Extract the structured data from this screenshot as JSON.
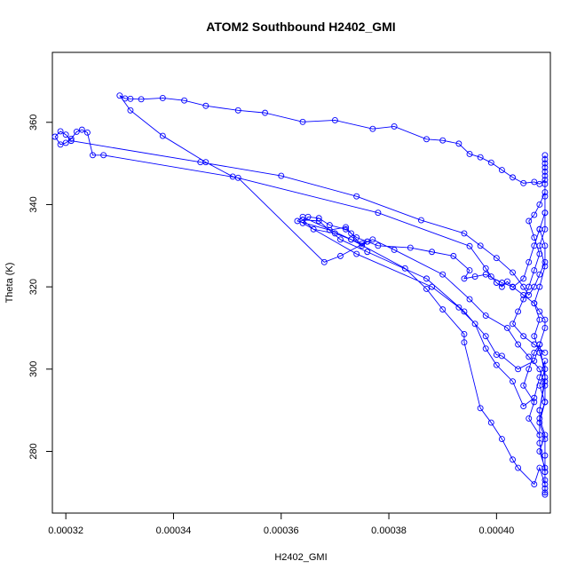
{
  "chart_data": {
    "type": "line",
    "marker": "open-circle",
    "title": "ATOM2 Southbound H2402_GMI",
    "xlabel": "H2402_GMI",
    "ylabel": "Theta (K)",
    "xlim": [
      0.0003175,
      0.00041
    ],
    "ylim": [
      265,
      377
    ],
    "x_ticks": [
      0.00032,
      0.00034,
      0.00036,
      0.00038,
      0.0004
    ],
    "x_tick_labels": [
      "0.00032",
      "0.00034",
      "0.00036",
      "0.00038",
      "0.00040"
    ],
    "y_ticks": [
      280,
      300,
      320,
      340,
      360
    ],
    "y_tick_labels": [
      "280",
      "300",
      "320",
      "340",
      "360"
    ],
    "color": "#0000ff",
    "series": [
      {
        "name": "H2402_GMI",
        "points": [
          [
            0.000409,
            352
          ],
          [
            0.000409,
            350
          ],
          [
            0.000409,
            348
          ],
          [
            0.000409,
            346
          ],
          [
            0.000408,
            345
          ],
          [
            0.000407,
            345.5
          ],
          [
            0.000405,
            345.2
          ],
          [
            0.000403,
            346.6
          ],
          [
            0.000401,
            348.4
          ],
          [
            0.000399,
            350.2
          ],
          [
            0.000397,
            351.5
          ],
          [
            0.000395,
            352.3
          ],
          [
            0.000393,
            354.8
          ],
          [
            0.00039,
            355.6
          ],
          [
            0.000387,
            355.9
          ],
          [
            0.000381,
            359.0
          ],
          [
            0.000377,
            358.4
          ],
          [
            0.00037,
            360.5
          ],
          [
            0.000364,
            360.1
          ],
          [
            0.000357,
            362.3
          ],
          [
            0.000352,
            362.9
          ],
          [
            0.000346,
            364.0
          ],
          [
            0.000342,
            365.3
          ],
          [
            0.000338,
            365.9
          ],
          [
            0.000334,
            365.6
          ],
          [
            0.000332,
            365.7
          ],
          [
            0.000331,
            365.8
          ],
          [
            0.00033,
            366.5
          ],
          [
            0.000332,
            362.9
          ],
          [
            0.000338,
            356.7
          ],
          [
            0.000346,
            350.3
          ],
          [
            0.000351,
            346.8
          ],
          [
            0.000378,
            338.0
          ],
          [
            0.000395,
            329.9
          ],
          [
            0.000398,
            324.5
          ],
          [
            0.000399,
            322.5
          ],
          [
            0.0004,
            321.0
          ],
          [
            0.000401,
            320.0
          ],
          [
            0.000402,
            321.3
          ],
          [
            0.000403,
            319.9
          ],
          [
            0.000405,
            322.0
          ],
          [
            0.000406,
            326.0
          ],
          [
            0.000407,
            330.0
          ],
          [
            0.000408,
            334.0
          ],
          [
            0.000409,
            338.0
          ],
          [
            0.000409,
            334.0
          ],
          [
            0.000408,
            330.0
          ],
          [
            0.000409,
            325.0
          ],
          [
            0.000408,
            320.0
          ],
          [
            0.000407,
            316.0
          ],
          [
            0.000408,
            312.0
          ],
          [
            0.000407,
            308.0
          ],
          [
            0.000408,
            304.0
          ],
          [
            0.000409,
            300.0
          ],
          [
            0.000408,
            296.0
          ],
          [
            0.000409,
            292.0
          ],
          [
            0.000408,
            288.0
          ],
          [
            0.000409,
            284.0
          ],
          [
            0.000408,
            280.0
          ],
          [
            0.000409,
            276.0
          ],
          [
            0.000409,
            273.0
          ],
          [
            0.000409,
            270.0
          ],
          [
            0.000409,
            275.0
          ],
          [
            0.000408,
            282.0
          ],
          [
            0.000408,
            290.0
          ],
          [
            0.000409,
            297.0
          ],
          [
            0.000409,
            302.0
          ],
          [
            0.000408,
            298.0
          ],
          [
            0.000407,
            293.0
          ],
          [
            0.000405,
            291.0
          ],
          [
            0.000403,
            297.0
          ],
          [
            0.0004,
            301.0
          ],
          [
            0.000398,
            305.0
          ],
          [
            0.000396,
            311.0
          ],
          [
            0.000393,
            315.0
          ],
          [
            0.000388,
            320.0
          ],
          [
            0.000374,
            328.0
          ],
          [
            0.000364,
            335.5
          ],
          [
            0.000365,
            337.0
          ],
          [
            0.000367,
            336.7
          ],
          [
            0.000369,
            335.0
          ],
          [
            0.000372,
            334.0
          ],
          [
            0.000373,
            333.0
          ],
          [
            0.000374,
            332.0
          ],
          [
            0.000376,
            331.0
          ],
          [
            0.000378,
            330.0
          ],
          [
            0.000384,
            329.5
          ],
          [
            0.000388,
            328.5
          ],
          [
            0.000392,
            327.5
          ],
          [
            0.000395,
            324.0
          ],
          [
            0.000394,
            322.0
          ],
          [
            0.000396,
            322.5
          ],
          [
            0.000398,
            323.0
          ],
          [
            0.000401,
            321.0
          ],
          [
            0.000403,
            320.0
          ],
          [
            0.000405,
            318.0
          ],
          [
            0.000407,
            316.0
          ],
          [
            0.000408,
            314.0
          ],
          [
            0.000409,
            312.0
          ],
          [
            0.000409,
            310.0
          ],
          [
            0.000408,
            306.0
          ],
          [
            0.000407,
            304.0
          ],
          [
            0.000406,
            300.0
          ],
          [
            0.000405,
            296.0
          ],
          [
            0.000407,
            292.0
          ],
          [
            0.000406,
            288.0
          ],
          [
            0.000408,
            284.0
          ],
          [
            0.000408,
            290.0
          ],
          [
            0.000409,
            298.0
          ],
          [
            0.000408,
            306.0
          ],
          [
            0.000407,
            302.0
          ],
          [
            0.000404,
            300.0
          ],
          [
            0.000401,
            303.2
          ],
          [
            0.0004,
            303.5
          ],
          [
            0.000398,
            308.0
          ],
          [
            0.000394,
            314.0
          ],
          [
            0.000387,
            322.0
          ],
          [
            0.000376,
            328.5
          ],
          [
            0.000371,
            331.5
          ],
          [
            0.000367,
            336.0
          ],
          [
            0.000364,
            336.3
          ],
          [
            0.000366,
            334.0
          ],
          [
            0.00037,
            333.0
          ],
          [
            0.000373,
            331.5
          ],
          [
            0.000375,
            330.5
          ],
          [
            0.000377,
            331.5
          ],
          [
            0.000381,
            329.0
          ],
          [
            0.00039,
            323.0
          ],
          [
            0.000395,
            317.0
          ],
          [
            0.000398,
            313.0
          ],
          [
            0.000402,
            310.0
          ],
          [
            0.000404,
            306.0
          ],
          [
            0.000406,
            303.0
          ],
          [
            0.000408,
            300.0
          ],
          [
            0.000409,
            296.0
          ],
          [
            0.000409,
            292.0
          ],
          [
            0.000408,
            287.0
          ],
          [
            0.000409,
            283.0
          ],
          [
            0.000409,
            279.0
          ],
          [
            0.000409,
            275.0
          ],
          [
            0.000409,
            271.0
          ],
          [
            0.000409,
            269.5
          ],
          [
            0.000409,
            272.0
          ],
          [
            0.000408,
            276.0
          ],
          [
            0.000407,
            272.0
          ],
          [
            0.000404,
            276.0
          ],
          [
            0.000403,
            278.0
          ],
          [
            0.000401,
            283.0
          ],
          [
            0.000399,
            287.0
          ],
          [
            0.000397,
            290.5
          ],
          [
            0.000394,
            306.5
          ],
          [
            0.000394,
            308.5
          ],
          [
            0.00039,
            314.5
          ],
          [
            0.000387,
            319.5
          ],
          [
            0.000383,
            324.5
          ],
          [
            0.000373,
            331.5
          ],
          [
            0.000364,
            337.0
          ],
          [
            0.000363,
            336.0
          ],
          [
            0.000369,
            333.8
          ],
          [
            0.000372,
            334.5
          ],
          [
            0.000375,
            330.0
          ],
          [
            0.000376,
            331.0
          ],
          [
            0.000371,
            327.5
          ],
          [
            0.000368,
            326.0
          ],
          [
            0.000352,
            346.5
          ],
          [
            0.000327,
            352.0
          ],
          [
            0.000325,
            352.0
          ],
          [
            0.000324,
            357.5
          ],
          [
            0.000323,
            358.2
          ],
          [
            0.000322,
            357.7
          ],
          [
            0.000321,
            356.0
          ],
          [
            0.00032,
            355.0
          ],
          [
            0.000319,
            354.6
          ],
          [
            0.000318,
            356.5
          ],
          [
            0.000319,
            357.8
          ],
          [
            0.00032,
            357.0
          ],
          [
            0.000321,
            355.5
          ],
          [
            0.000345,
            350.3
          ],
          [
            0.00036,
            347.0
          ],
          [
            0.000374,
            342.0
          ],
          [
            0.000386,
            336.2
          ],
          [
            0.000394,
            333.0
          ],
          [
            0.000397,
            330.0
          ],
          [
            0.0004,
            327.0
          ],
          [
            0.000403,
            323.5
          ],
          [
            0.000405,
            320.0
          ],
          [
            0.000406,
            318.0
          ],
          [
            0.000407,
            320.0
          ],
          [
            0.000408,
            323.0
          ],
          [
            0.000409,
            326.0
          ],
          [
            0.000409,
            330.0
          ],
          [
            0.000408,
            334.0
          ],
          [
            0.000409,
            338.0
          ],
          [
            0.000409,
            342.0
          ],
          [
            0.000409,
            345.0
          ],
          [
            0.000409,
            349.0
          ],
          [
            0.000409,
            351.0
          ],
          [
            0.000409,
            347.0
          ],
          [
            0.000409,
            343.0
          ],
          [
            0.000408,
            340.0
          ],
          [
            0.000407,
            337.5
          ],
          [
            0.000406,
            336.0
          ],
          [
            0.000407,
            332.0
          ],
          [
            0.000408,
            328.0
          ],
          [
            0.000407,
            324.0
          ],
          [
            0.000406,
            320.0
          ],
          [
            0.000405,
            317.0
          ],
          [
            0.000404,
            314.0
          ],
          [
            0.000403,
            311.0
          ],
          [
            0.000405,
            308.0
          ],
          [
            0.000407,
            306.0
          ],
          [
            0.000409,
            304.0
          ]
        ]
      }
    ]
  }
}
